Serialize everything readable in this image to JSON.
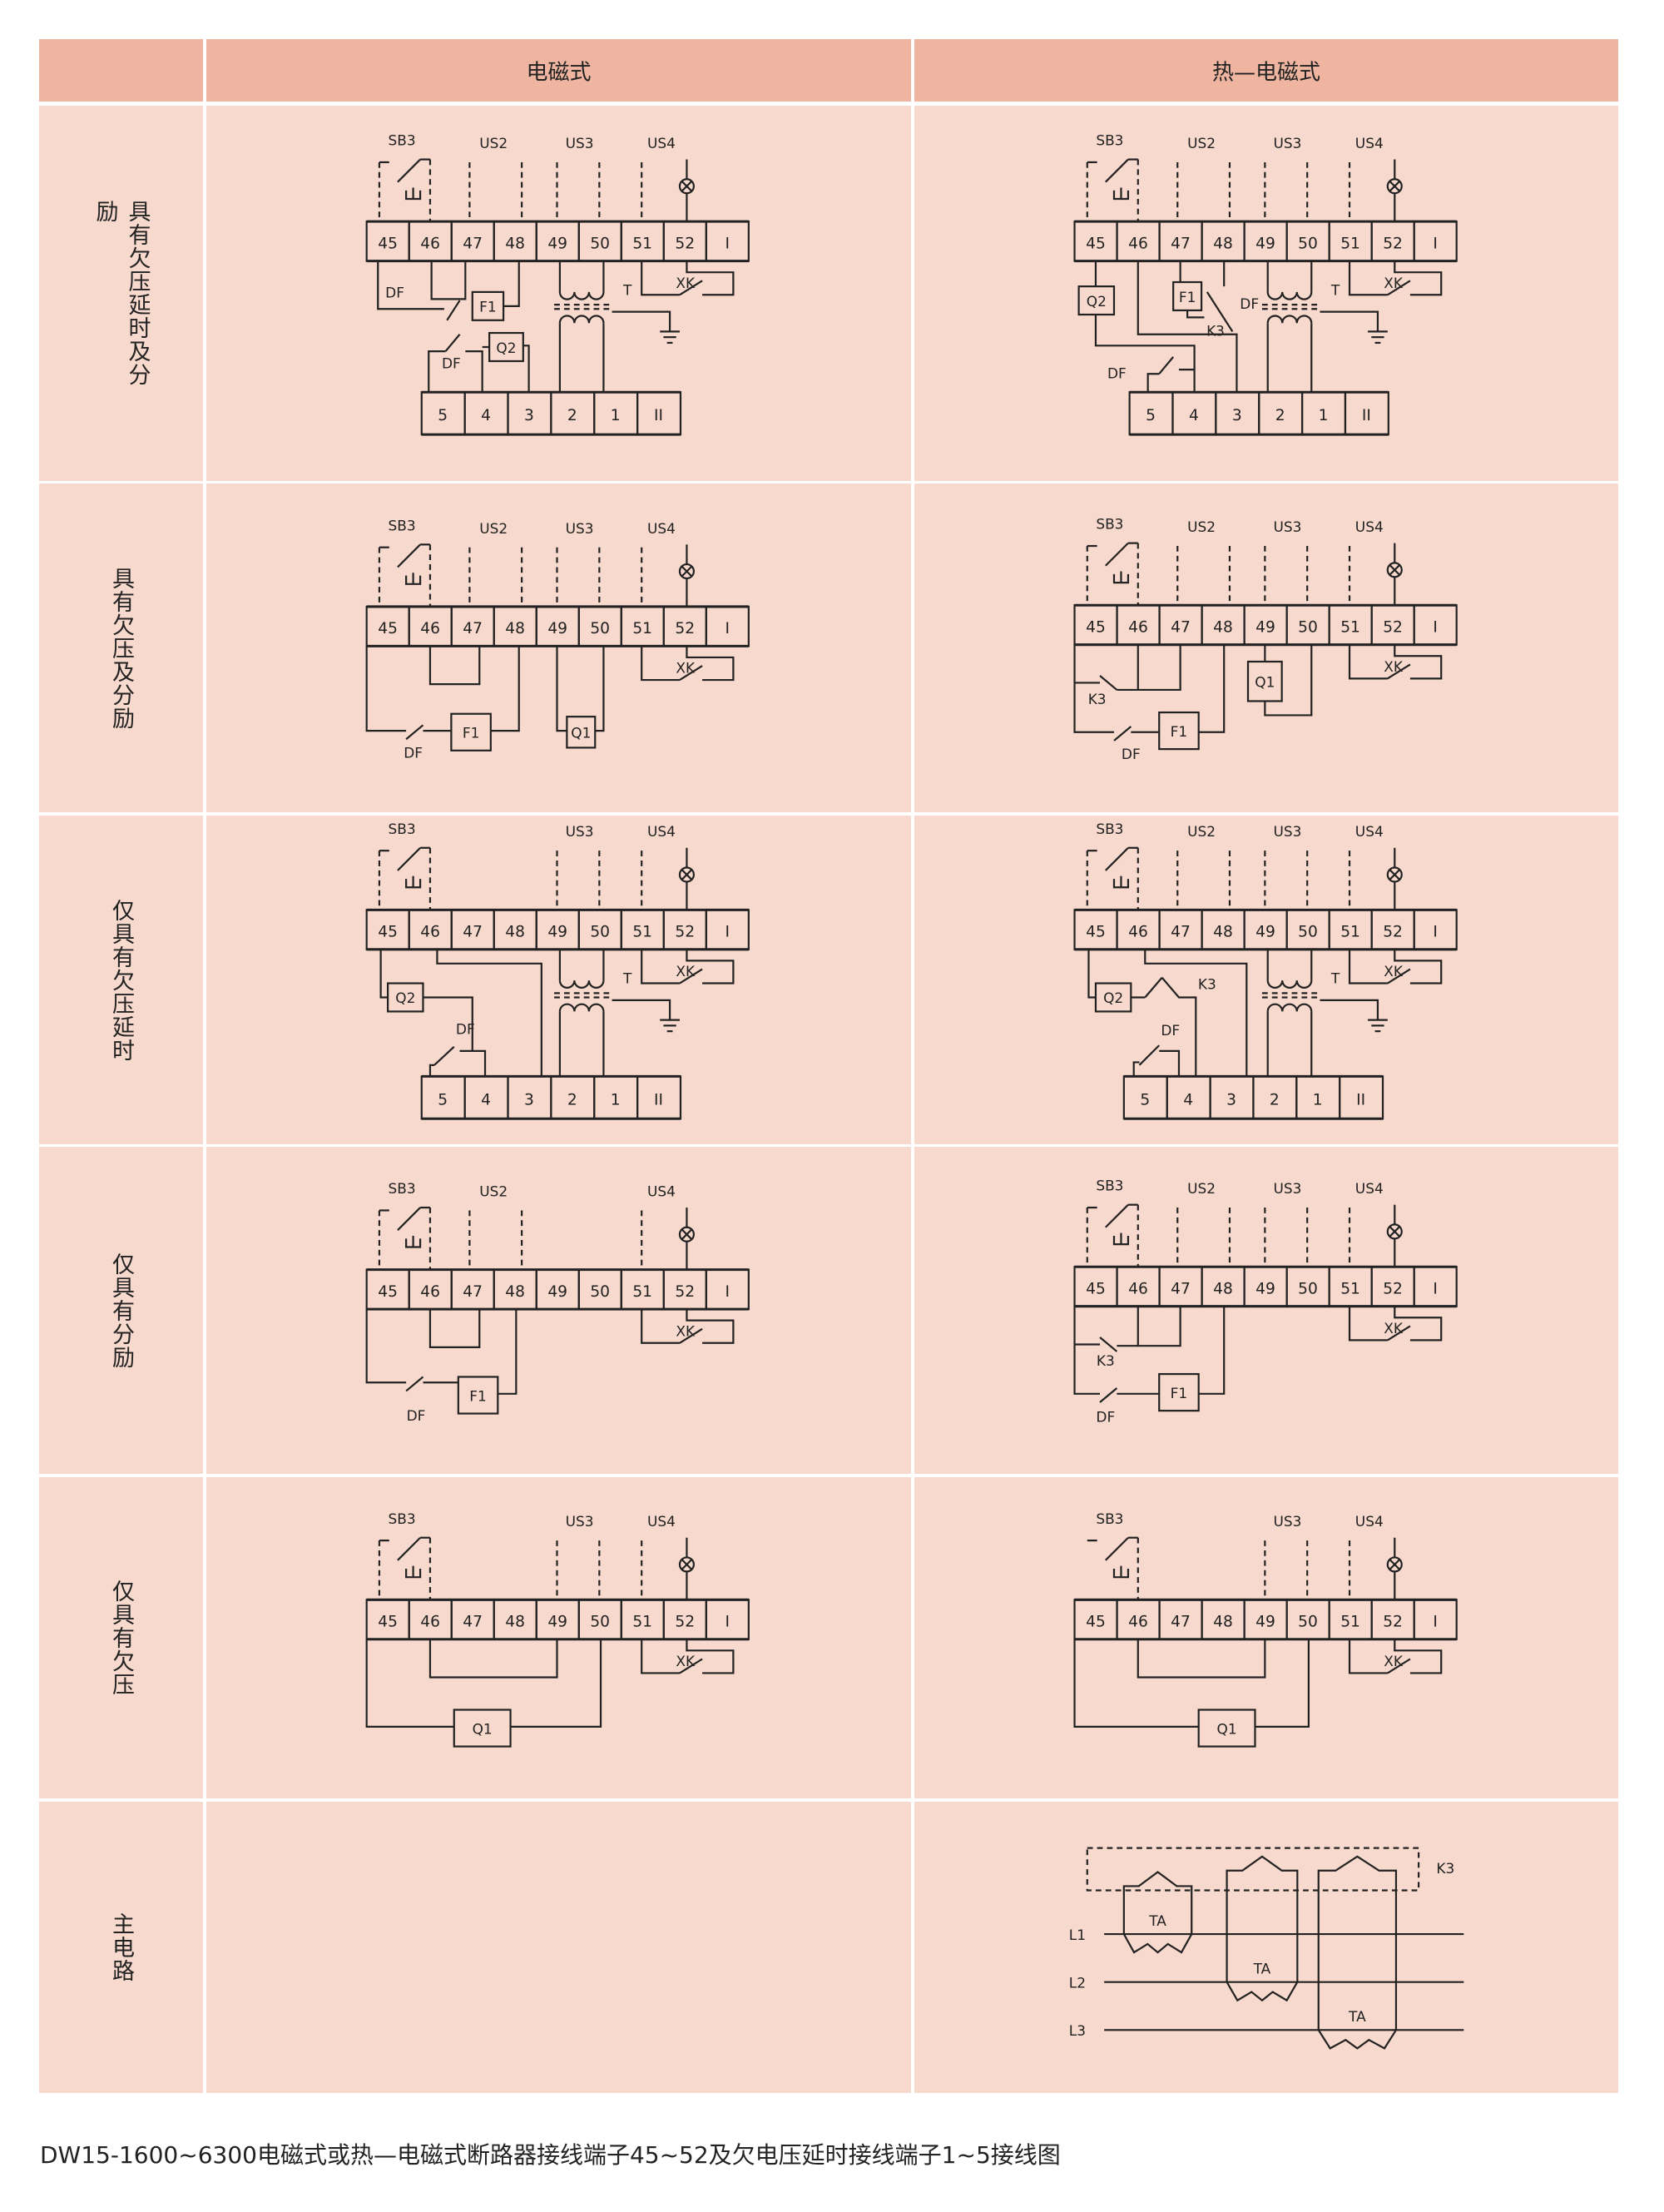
{
  "header": {
    "col1": "电磁式",
    "col2": "热—电磁式"
  },
  "rows": [
    {
      "label": "具有欠压延时及分励"
    },
    {
      "label": "具有欠压及分励"
    },
    {
      "label": "仅具有欠压延时"
    },
    {
      "label": "仅具有分励"
    },
    {
      "label": "仅具有欠压"
    },
    {
      "label": "主电路"
    }
  ],
  "terminals_top": [
    "45",
    "46",
    "47",
    "48",
    "49",
    "50",
    "51",
    "52",
    "I"
  ],
  "terminals_bottom": [
    "5",
    "4",
    "3",
    "2",
    "1",
    "II"
  ],
  "labels": {
    "SB3": "SB3",
    "US2": "US2",
    "US3": "US3",
    "US4": "US4",
    "DF": "DF",
    "F1": "F1",
    "Q1": "Q1",
    "Q2": "Q2",
    "K3": "K3",
    "XK": "XK",
    "T": "T",
    "TA": "TA",
    "L1": "L1",
    "L2": "L2",
    "L3": "L3"
  },
  "caption": "DW15-1600~6300电磁式或热—电磁式断路器接线端子45~52及欠电压延时接线端子1~5接线图",
  "colors": {
    "header": "#efb5a0",
    "body": "#f8d9cd",
    "line": "#222222"
  }
}
